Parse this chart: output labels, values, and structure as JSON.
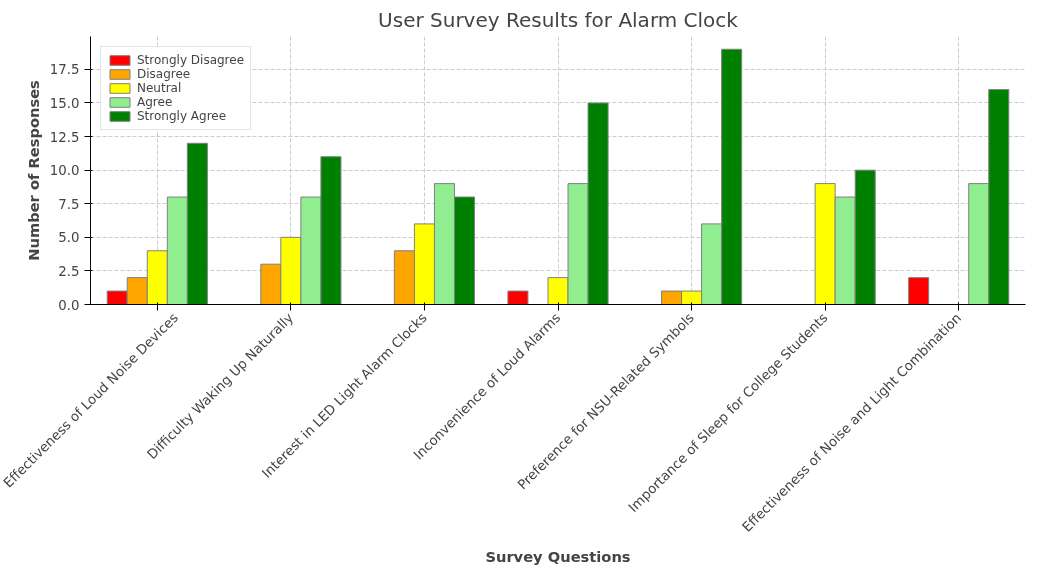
{
  "chart_data": {
    "type": "bar",
    "title": "User Survey Results for Alarm Clock",
    "xlabel": "Survey Questions",
    "ylabel": "Number of Responses",
    "categories": [
      "Effectiveness of Loud Noise Devices",
      "Difficulty Waking Up Naturally",
      "Interest in LED Light Alarm Clocks",
      "Inconvenience of Loud Alarms",
      "Preference for NSU-Related Symbols",
      "Importance of Sleep for College Students",
      "Effectiveness of Noise and Light Combination"
    ],
    "series": [
      {
        "name": "Strongly Disagree",
        "color": "#ff0000",
        "values": [
          1,
          0,
          0,
          1,
          0,
          0,
          2
        ]
      },
      {
        "name": "Disagree",
        "color": "#ffa500",
        "values": [
          2,
          3,
          4,
          0,
          1,
          0,
          0
        ]
      },
      {
        "name": "Neutral",
        "color": "#ffff00",
        "values": [
          4,
          5,
          6,
          2,
          1,
          9,
          0
        ]
      },
      {
        "name": "Agree",
        "color": "#90ee90",
        "values": [
          8,
          8,
          9,
          9,
          6,
          8,
          9
        ]
      },
      {
        "name": "Strongly Agree",
        "color": "#008000",
        "values": [
          12,
          11,
          8,
          15,
          19,
          10,
          16
        ]
      }
    ],
    "ylim": [
      0,
      19.95
    ],
    "yticks": [
      {
        "value": 0,
        "label": "0.0"
      },
      {
        "value": 2.5,
        "label": "2.5"
      },
      {
        "value": 5,
        "label": "5.0"
      },
      {
        "value": 7.5,
        "label": "7.5"
      },
      {
        "value": 10,
        "label": "10.0"
      },
      {
        "value": 12.5,
        "label": "12.5"
      },
      {
        "value": 15,
        "label": "15.0"
      },
      {
        "value": 17.5,
        "label": "17.5"
      }
    ],
    "grid": true,
    "legend": "top left"
  }
}
